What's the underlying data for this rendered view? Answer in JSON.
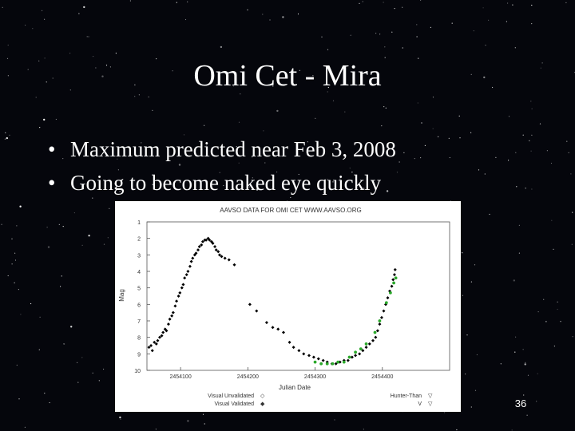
{
  "slide": {
    "title": "Omi Cet - Mira",
    "bullets": [
      "Maximum predicted near Feb 3, 2008",
      "Going to become naked eye quickly"
    ],
    "bullet_glyph": "•",
    "page_number": "36"
  },
  "chart_data": {
    "type": "scatter",
    "title": "AAVSO DATA FOR OMI CET   WWW.AAVSO.ORG",
    "xlabel": "Julian Date",
    "ylabel": "Mag",
    "xlim": [
      2454050,
      2454500
    ],
    "ylim": [
      10,
      1
    ],
    "y_inverted": true,
    "xticks": [
      {
        "value": 2454100,
        "label": "2454100"
      },
      {
        "value": 2454200,
        "label": "2454200"
      },
      {
        "value": 2454300,
        "label": "2454300"
      },
      {
        "value": 2454400,
        "label": "2454400"
      }
    ],
    "yticks": [
      1,
      2,
      3,
      4,
      5,
      6,
      7,
      8,
      9,
      10
    ],
    "legend": {
      "placement": "bottom",
      "entries": [
        {
          "label": "Visual Unvalidated",
          "symbol": "◇"
        },
        {
          "label": "Visual Validated",
          "symbol": "◆"
        },
        {
          "label": "Hunter-Than",
          "symbol": "▽"
        },
        {
          "label": "V",
          "symbol": "▽"
        }
      ]
    },
    "series": [
      {
        "name": "Visual Validated",
        "color": "#000000",
        "points": [
          [
            2454053,
            8.6
          ],
          [
            2454056,
            8.5
          ],
          [
            2454058,
            8.8
          ],
          [
            2454061,
            8.3
          ],
          [
            2454064,
            8.4
          ],
          [
            2454066,
            8.2
          ],
          [
            2454069,
            8.0
          ],
          [
            2454072,
            7.9
          ],
          [
            2454074,
            7.7
          ],
          [
            2454077,
            7.5
          ],
          [
            2454079,
            7.6
          ],
          [
            2454082,
            7.2
          ],
          [
            2454084,
            6.9
          ],
          [
            2454087,
            6.7
          ],
          [
            2454089,
            6.5
          ],
          [
            2454092,
            6.1
          ],
          [
            2454094,
            5.8
          ],
          [
            2454097,
            5.5
          ],
          [
            2454099,
            5.3
          ],
          [
            2454102,
            5.0
          ],
          [
            2454104,
            4.8
          ],
          [
            2454106,
            4.4
          ],
          [
            2454109,
            4.2
          ],
          [
            2454111,
            4.0
          ],
          [
            2454114,
            3.7
          ],
          [
            2454116,
            3.4
          ],
          [
            2454118,
            3.2
          ],
          [
            2454121,
            3.0
          ],
          [
            2454123,
            2.9
          ],
          [
            2454126,
            2.7
          ],
          [
            2454128,
            2.5
          ],
          [
            2454131,
            2.4
          ],
          [
            2454133,
            2.2
          ],
          [
            2454136,
            2.1
          ],
          [
            2454138,
            2.1
          ],
          [
            2454141,
            2.0
          ],
          [
            2454143,
            2.1
          ],
          [
            2454146,
            2.2
          ],
          [
            2454148,
            2.3
          ],
          [
            2454151,
            2.5
          ],
          [
            2454153,
            2.7
          ],
          [
            2454156,
            2.8
          ],
          [
            2454158,
            3.0
          ],
          [
            2454161,
            3.1
          ],
          [
            2454166,
            3.2
          ],
          [
            2454172,
            3.3
          ],
          [
            2454180,
            3.6
          ],
          [
            2454203,
            6.0
          ],
          [
            2454213,
            6.4
          ],
          [
            2454228,
            7.1
          ],
          [
            2454237,
            7.4
          ],
          [
            2454245,
            7.5
          ],
          [
            2454253,
            7.7
          ],
          [
            2454262,
            8.3
          ],
          [
            2454268,
            8.6
          ],
          [
            2454276,
            8.8
          ],
          [
            2454283,
            9.0
          ],
          [
            2454291,
            9.1
          ],
          [
            2454298,
            9.2
          ],
          [
            2454305,
            9.3
          ],
          [
            2454312,
            9.4
          ],
          [
            2454318,
            9.5
          ],
          [
            2454325,
            9.6
          ],
          [
            2454331,
            9.6
          ],
          [
            2454337,
            9.5
          ],
          [
            2454343,
            9.4
          ],
          [
            2454349,
            9.4
          ],
          [
            2454355,
            9.2
          ],
          [
            2454360,
            9.1
          ],
          [
            2454366,
            9.0
          ],
          [
            2454371,
            8.8
          ],
          [
            2454376,
            8.6
          ],
          [
            2454381,
            8.4
          ],
          [
            2454386,
            8.2
          ],
          [
            2454390,
            8.0
          ],
          [
            2454393,
            7.6
          ],
          [
            2454396,
            7.2
          ],
          [
            2454399,
            6.8
          ],
          [
            2454402,
            6.4
          ],
          [
            2454405,
            6.0
          ],
          [
            2454408,
            5.6
          ],
          [
            2454411,
            5.2
          ],
          [
            2454414,
            4.9
          ],
          [
            2454416,
            4.5
          ],
          [
            2454418,
            4.2
          ],
          [
            2454419,
            3.9
          ]
        ]
      },
      {
        "name": "V",
        "color": "#2aa82a",
        "points": [
          [
            2454300,
            9.5
          ],
          [
            2454309,
            9.6
          ],
          [
            2454318,
            9.6
          ],
          [
            2454326,
            9.6
          ],
          [
            2454334,
            9.5
          ],
          [
            2454343,
            9.5
          ],
          [
            2454351,
            9.2
          ],
          [
            2454360,
            8.9
          ],
          [
            2454368,
            8.7
          ],
          [
            2454376,
            8.4
          ],
          [
            2454389,
            7.7
          ],
          [
            2454396,
            7.0
          ],
          [
            2454406,
            5.9
          ],
          [
            2454412,
            5.3
          ],
          [
            2454417,
            4.7
          ],
          [
            2454420,
            4.4
          ]
        ]
      }
    ]
  },
  "colors": {
    "background": "#05060c",
    "text": "#ffffff",
    "validated": "#000000",
    "v_band": "#2aa82a"
  }
}
